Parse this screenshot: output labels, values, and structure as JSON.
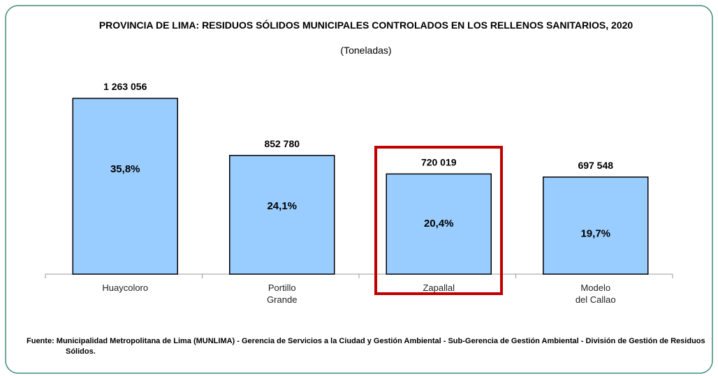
{
  "chart_data": {
    "type": "bar",
    "title": "PROVINCIA DE LIMA: RESIDUOS SÓLIDOS MUNICIPALES CONTROLADOS EN LOS RELLENOS SANITARIOS, 2020",
    "subtitle": "(Toneladas)",
    "categories": [
      "Huaycoloro",
      "Portillo Grande",
      "Zapallal",
      "Modelo del Callao"
    ],
    "values": [
      1263056,
      852780,
      720019,
      697548
    ],
    "value_labels": [
      "1 263 056",
      "852 780",
      "720 019",
      "697 548"
    ],
    "percentages": [
      35.8,
      24.1,
      20.4,
      19.7
    ],
    "percentage_labels": [
      "35,8%",
      "24,1%",
      "20,4%",
      "19,7%"
    ],
    "color": "#99ccff",
    "source": "Fuente: Municipalidad Metropolitana de Lima (MUNLIMA) - Gerencia de Servicios a la Ciudad y Gestión Ambiental - Sub-Gerencia de Gestión Ambiental - División de Gestión de Residuos Sólidos."
  }
}
